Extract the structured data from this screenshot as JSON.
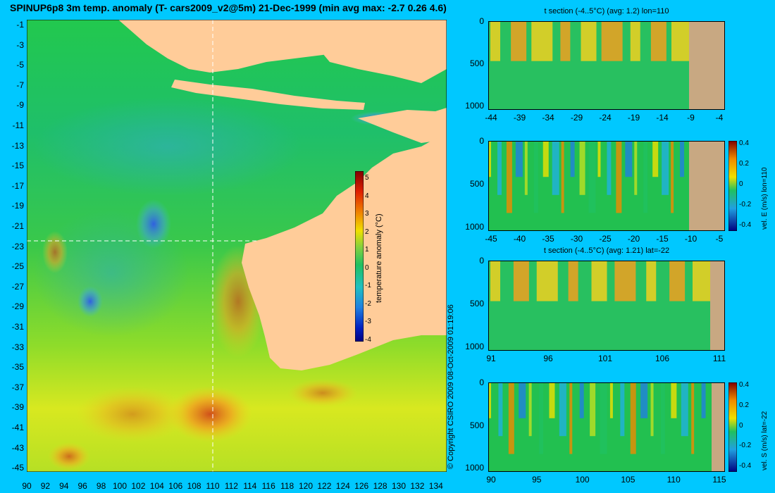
{
  "title": "SPINUP6p8 3m temp. anomaly (T- cars2009_v2@5m) 21-Dec-1999 (min avg max: -2.7 0.26 4.6)",
  "copyright": "© Copyright CSIRO 2009   08-Oct-2009 01:19:06",
  "colors": {
    "background": "#00c8ff",
    "land": "#ffcc99",
    "section_land": "#c8a882",
    "ocean_base": "#22c850"
  },
  "map": {
    "xticks": [
      "90",
      "92",
      "94",
      "96",
      "98",
      "100",
      "102",
      "104",
      "106",
      "108",
      "110",
      "112",
      "114",
      "116",
      "118",
      "120",
      "122",
      "124",
      "126",
      "128",
      "130",
      "132",
      "134"
    ],
    "yticks": [
      "-1",
      "-3",
      "-5",
      "-7",
      "-9",
      "-11",
      "-13",
      "-15",
      "-17",
      "-19",
      "-21",
      "-23",
      "-25",
      "-27",
      "-29",
      "-31",
      "-33",
      "-35",
      "-37",
      "-39",
      "-41",
      "-43",
      "-45"
    ],
    "colorbar": {
      "label": "temperature anomaly (°C)",
      "ticks": [
        "5",
        "4",
        "3",
        "2",
        "1",
        "0",
        "-1",
        "-2",
        "-3",
        "-4"
      ],
      "range": [
        -4,
        5
      ]
    },
    "section_lines": {
      "lon": 110,
      "lat": -22
    }
  },
  "panels": [
    {
      "title": "t section (-4..5°C) (avg: 1.2) lon=110",
      "xticks": [
        "-44",
        "-39",
        "-34",
        "-29",
        "-24",
        "-19",
        "-14",
        "-9",
        "-4"
      ],
      "yticks": [
        "0",
        "500",
        "1000"
      ],
      "side_label": "",
      "cb_ticks": []
    },
    {
      "title": "",
      "xticks": [
        "-45",
        "-40",
        "-35",
        "-30",
        "-25",
        "-20",
        "-15",
        "-10",
        "-5"
      ],
      "yticks": [
        "0",
        "500",
        "1000"
      ],
      "side_label": "vel. E (m/s) lon=110",
      "cb_ticks": [
        "0.4",
        "0.2",
        "0",
        "-0.2",
        "-0.4"
      ]
    },
    {
      "title": "t section (-4..5°C) (avg: 1.21) lat=-22",
      "xticks": [
        "91",
        "96",
        "101",
        "106",
        "111"
      ],
      "yticks": [
        "0",
        "500",
        "1000"
      ],
      "side_label": "",
      "cb_ticks": []
    },
    {
      "title": "",
      "xticks": [
        "90",
        "95",
        "100",
        "105",
        "110",
        "115"
      ],
      "yticks": [
        "0",
        "500",
        "1000"
      ],
      "side_label": "vel. S (m/s) lat=-22",
      "cb_ticks": [
        "0.4",
        "0.2",
        "0",
        "-0.2",
        "-0.4"
      ]
    }
  ]
}
